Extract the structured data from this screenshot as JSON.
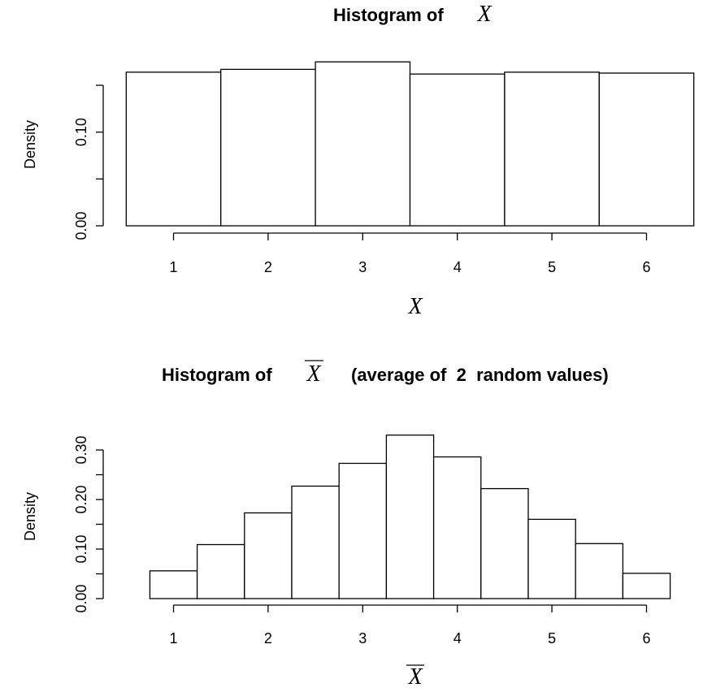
{
  "chart_data": [
    {
      "type": "bar",
      "title": "Histogram of",
      "title_symbol": "X",
      "xlabel_symbol": "X",
      "ylabel": "Density",
      "bin_edges": [
        0.5,
        1.5,
        2.5,
        3.5,
        4.5,
        5.5,
        6.5
      ],
      "values": [
        0.164,
        0.167,
        0.175,
        0.162,
        0.164,
        0.163
      ],
      "xlim": [
        0.27,
        6.5
      ],
      "ylim": [
        0,
        0.15
      ],
      "x_ticks": [
        1,
        2,
        3,
        4,
        5,
        6
      ],
      "x_tick_labels": [
        "1",
        "2",
        "3",
        "4",
        "5",
        "6"
      ],
      "y_ticks": [
        0,
        0.05,
        0.1,
        0.15
      ],
      "y_tick_labels": [
        "0.00",
        "",
        "0.10",
        ""
      ],
      "grid": false,
      "legend": "none"
    },
    {
      "type": "bar",
      "title": "Histogram of",
      "title_symbol": "X",
      "title_suffix": "(average of  2  random values)",
      "xlabel_symbol": "X",
      "ylabel": "Density",
      "bin_edges": [
        0.75,
        1.25,
        1.75,
        2.25,
        2.75,
        3.25,
        3.75,
        4.25,
        4.75,
        5.25,
        5.75,
        6.25
      ],
      "values": [
        0.056,
        0.109,
        0.173,
        0.227,
        0.273,
        0.33,
        0.286,
        0.222,
        0.16,
        0.111,
        0.051
      ],
      "xlim": [
        0.27,
        6.5
      ],
      "ylim": [
        0,
        0.3
      ],
      "x_ticks": [
        1,
        2,
        3,
        4,
        5,
        6
      ],
      "x_tick_labels": [
        "1",
        "2",
        "3",
        "4",
        "5",
        "6"
      ],
      "y_ticks": [
        0,
        0.05,
        0.1,
        0.15,
        0.2,
        0.25,
        0.3
      ],
      "y_tick_labels": [
        "0.00",
        "",
        "0.10",
        "",
        "0.20",
        "",
        "0.30"
      ],
      "grid": false,
      "legend": "none"
    }
  ]
}
